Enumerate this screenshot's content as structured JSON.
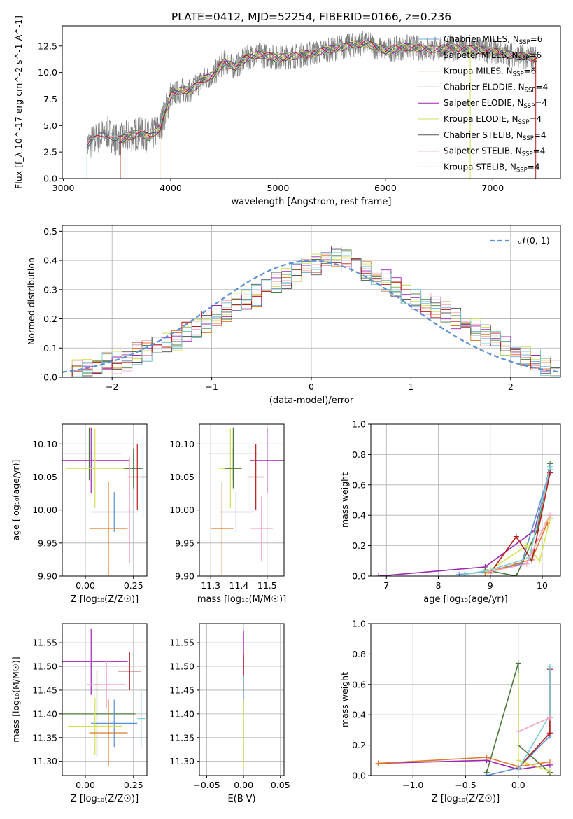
{
  "figure": {
    "title": "PLATE=0412, MJD=52254, FIBERID=0166, z=0.236"
  },
  "chart_data": [
    {
      "id": "spectrum",
      "type": "line",
      "xlabel": "wavelength [Angstrom, rest frame]",
      "ylabel": "Flux [f_λ 10^-17 erg cm^-2 s^-1 A^-1]",
      "xlim": [
        2990,
        7630
      ],
      "ylim": [
        0,
        14.4
      ],
      "xticks": [
        3000,
        4000,
        5000,
        6000,
        7000
      ],
      "yticks": [
        0.0,
        2.5,
        5.0,
        7.5,
        10.0,
        12.5
      ],
      "grid": false,
      "legend_position": "top-right",
      "legend": [
        {
          "label": "Chabrier MILES, N",
          "sub": "SSP",
          "tail": "=6",
          "color": "#6baed6"
        },
        {
          "label": "Salpeter MILES, N",
          "sub": "SSP",
          "tail": "=6",
          "color": "#f4a6c0"
        },
        {
          "label": "Kroupa MILES, N",
          "sub": "SSP",
          "tail": "=6",
          "color": "#e07b2a"
        },
        {
          "label": "Chabrier ELODIE, N",
          "sub": "SSP",
          "tail": "=4",
          "color": "#4b7a3a"
        },
        {
          "label": "Salpeter ELODIE, N",
          "sub": "SSP",
          "tail": "=4",
          "color": "#9b27b0"
        },
        {
          "label": "Kroupa ELODIE, N",
          "sub": "SSP",
          "tail": "=4",
          "color": "#d4e157"
        },
        {
          "label": "Chabrier STELIB, N",
          "sub": "SSP",
          "tail": "=4",
          "color": "#555555"
        },
        {
          "label": "Salpeter STELIB, N",
          "sub": "SSP",
          "tail": "=4",
          "color": "#b71c1c"
        },
        {
          "label": "Kroupa STELIB, N",
          "sub": "SSP",
          "tail": "=4",
          "color": "#80cbd8"
        }
      ],
      "data_color": "#808080",
      "model_envelope": {
        "x": [
          3220,
          3300,
          3400,
          3500,
          3600,
          3700,
          3800,
          3900,
          4000,
          4100,
          4200,
          4300,
          4400,
          4500,
          4600,
          4700,
          4800,
          5000,
          5200,
          5400,
          5600,
          5800,
          6000,
          6200,
          6400,
          6600,
          6800,
          7000,
          7200,
          7400
        ],
        "y": [
          3.2,
          3.7,
          4.4,
          3.6,
          3.9,
          4.3,
          3.9,
          4.8,
          7.8,
          8.3,
          8.4,
          9.3,
          9.8,
          11.0,
          10.5,
          11.3,
          11.7,
          11.4,
          11.6,
          12.0,
          12.4,
          12.8,
          12.1,
          12.4,
          12.2,
          12.3,
          12.2,
          12.0,
          11.6,
          11.4
        ]
      }
    },
    {
      "id": "residuals",
      "type": "line",
      "xlabel": "(data-model)/error",
      "ylabel": "Normed distribution",
      "xlim": [
        -2.5,
        2.5
      ],
      "ylim": [
        0,
        0.52
      ],
      "xticks": [
        -2,
        -1,
        0,
        1,
        2
      ],
      "yticks": [
        0.0,
        0.1,
        0.2,
        0.3,
        0.4,
        0.5
      ],
      "grid": true,
      "legend_position": "top-right",
      "legend": [
        {
          "label": "𝒩(0, 1)",
          "color": "#5b8fd6",
          "dashed": true
        }
      ],
      "bin_width": 0.1,
      "hist_x_start": -2.5,
      "hist_base": [
        0.02,
        0.03,
        0.03,
        0.04,
        0.05,
        0.05,
        0.06,
        0.08,
        0.09,
        0.1,
        0.12,
        0.13,
        0.15,
        0.17,
        0.19,
        0.21,
        0.23,
        0.25,
        0.27,
        0.28,
        0.3,
        0.32,
        0.34,
        0.36,
        0.38,
        0.39,
        0.4,
        0.41,
        0.4,
        0.38,
        0.37,
        0.35,
        0.33,
        0.31,
        0.29,
        0.27,
        0.25,
        0.24,
        0.22,
        0.2,
        0.18,
        0.16,
        0.14,
        0.12,
        0.1,
        0.09,
        0.07,
        0.06,
        0.04,
        0.03
      ]
    },
    {
      "id": "age-vs-metallicity",
      "type": "scatter",
      "xlabel": "Z [log₁₀(Z/Z☉)]",
      "ylabel": "age  [log₁₀(age/yr)]",
      "xlim": [
        -0.12,
        0.32
      ],
      "ylim": [
        9.9,
        10.13
      ],
      "xticks": [
        0.0,
        0.25
      ],
      "xticklabels": [
        "0.00",
        "0.25"
      ],
      "yticks": [
        9.9,
        9.95,
        10.0,
        10.05,
        10.1
      ],
      "yticklabels": [
        "9.90",
        "9.95",
        "10.00",
        "10.05",
        "10.10"
      ],
      "grid": true,
      "points": [
        {
          "x": 0.02,
          "y": 10.085,
          "xerr": 0.17,
          "yerr": 0.04,
          "color": "#4b7a3a"
        },
        {
          "x": 0.03,
          "y": 10.075,
          "xerr": 0.2,
          "yerr": 0.05,
          "color": "#9b27b0"
        },
        {
          "x": 0.05,
          "y": 10.063,
          "xerr": 0.15,
          "yerr": 0.06,
          "color": "#d4e157"
        },
        {
          "x": 0.25,
          "y": 10.063,
          "xerr": 0.05,
          "yerr": 0.03,
          "color": "#4b7a3a"
        },
        {
          "x": 0.27,
          "y": 10.05,
          "xerr": 0.05,
          "yerr": 0.05,
          "color": "#b71c1c"
        },
        {
          "x": 0.15,
          "y": 9.997,
          "xerr": 0.12,
          "yerr": 0.03,
          "color": "#5b8fd6"
        },
        {
          "x": 0.12,
          "y": 9.972,
          "xerr": 0.1,
          "yerr": 0.07,
          "color": "#e07b2a"
        },
        {
          "x": 0.3,
          "y": 10.05,
          "xerr": 0.01,
          "yerr": 0.06,
          "color": "#80cbd8"
        },
        {
          "x": 0.23,
          "y": 10.0,
          "xerr": 0.01,
          "yerr": 0.08,
          "color": "#f4a6c0"
        }
      ]
    },
    {
      "id": "age-vs-mass",
      "type": "scatter",
      "xlabel": "mass [log₁₀(M/M☉)]",
      "xlim": [
        11.26,
        11.56
      ],
      "ylim": [
        9.9,
        10.13
      ],
      "xticks": [
        11.3,
        11.4,
        11.5
      ],
      "xticklabels": [
        "11.3",
        "11.4",
        "11.5"
      ],
      "yticks": [
        9.9,
        9.95,
        10.0,
        10.05,
        10.1
      ],
      "yticklabels": [
        "9.90",
        "9.95",
        "10.00",
        "10.05",
        "10.10"
      ],
      "grid": true,
      "points": [
        {
          "x": 11.38,
          "y": 10.085,
          "xerr": 0.09,
          "yerr": 0.04,
          "color": "#4b7a3a"
        },
        {
          "x": 11.5,
          "y": 10.075,
          "xerr": 0.06,
          "yerr": 0.05,
          "color": "#9b27b0"
        },
        {
          "x": 11.37,
          "y": 10.063,
          "xerr": 0.04,
          "yerr": 0.06,
          "color": "#d4e157"
        },
        {
          "x": 11.38,
          "y": 10.063,
          "xerr": 0.03,
          "yerr": 0.03,
          "color": "#4b7a3a"
        },
        {
          "x": 11.46,
          "y": 10.05,
          "xerr": 0.03,
          "yerr": 0.05,
          "color": "#b71c1c"
        },
        {
          "x": 11.39,
          "y": 9.997,
          "xerr": 0.06,
          "yerr": 0.03,
          "color": "#5b8fd6"
        },
        {
          "x": 11.34,
          "y": 9.972,
          "xerr": 0.04,
          "yerr": 0.07,
          "color": "#e07b2a"
        },
        {
          "x": 11.48,
          "y": 9.972,
          "xerr": 0.04,
          "yerr": 0.05,
          "color": "#f4a6c0"
        }
      ]
    },
    {
      "id": "mass-weight-vs-age",
      "type": "line",
      "xlabel": "age  [log₁₀(age/yr)]",
      "ylabel": "mass weight",
      "xlim": [
        6.7,
        10.35
      ],
      "ylim": [
        0,
        1.0
      ],
      "xticks": [
        7,
        8,
        9,
        10
      ],
      "yticks": [
        0.0,
        0.2,
        0.4,
        0.6,
        0.8,
        1.0
      ],
      "grid": true,
      "series": [
        {
          "color": "#9b27b0",
          "x": [
            6.85,
            8.9,
            9.85,
            10.15
          ],
          "y": [
            0.0,
            0.06,
            0.3,
            0.7
          ]
        },
        {
          "color": "#4b7a3a",
          "x": [
            8.9,
            9.5,
            9.9,
            10.15
          ],
          "y": [
            0.04,
            0.0,
            0.3,
            0.74
          ]
        },
        {
          "color": "#5b8fd6",
          "x": [
            8.4,
            9.0,
            9.6,
            10.15
          ],
          "y": [
            0.01,
            0.03,
            0.08,
            0.7
          ]
        },
        {
          "color": "#e07b2a",
          "x": [
            8.9,
            9.5,
            9.8,
            10.1
          ],
          "y": [
            0.02,
            0.08,
            0.11,
            0.35
          ]
        },
        {
          "color": "#d4e157",
          "x": [
            8.95,
            9.7,
            9.95,
            10.15
          ],
          "y": [
            0.03,
            0.2,
            0.1,
            0.38
          ]
        },
        {
          "color": "#b71c1c",
          "x": [
            9.0,
            9.5,
            9.8,
            10.15
          ],
          "y": [
            0.02,
            0.26,
            0.1,
            0.68
          ]
        },
        {
          "color": "#80cbd8",
          "x": [
            8.5,
            9.0,
            9.75,
            10.15
          ],
          "y": [
            0.01,
            0.04,
            0.12,
            0.72
          ]
        },
        {
          "color": "#f4a6c0",
          "x": [
            9.0,
            9.7,
            10.0,
            10.15
          ],
          "y": [
            0.03,
            0.08,
            0.3,
            0.4
          ]
        }
      ]
    },
    {
      "id": "mass-vs-metallicity",
      "type": "scatter",
      "xlabel": "Z [log₁₀(Z/Z☉)]",
      "ylabel": "mass [log₁₀(M/M☉)]",
      "xlim": [
        -0.12,
        0.32
      ],
      "ylim": [
        11.27,
        11.59
      ],
      "xticks": [
        0.0,
        0.25
      ],
      "xticklabels": [
        "0.00",
        "0.25"
      ],
      "yticks": [
        11.3,
        11.35,
        11.4,
        11.45,
        11.5,
        11.55
      ],
      "yticklabels": [
        "11.30",
        "11.35",
        "11.40",
        "11.45",
        "11.50",
        "11.55"
      ],
      "grid": true,
      "points": [
        {
          "x": 0.03,
          "y": 11.51,
          "xerr": 0.19,
          "yerr": 0.07,
          "color": "#9b27b0"
        },
        {
          "x": 0.23,
          "y": 11.49,
          "xerr": 0.06,
          "yerr": 0.04,
          "color": "#b71c1c"
        },
        {
          "x": 0.11,
          "y": 11.462,
          "xerr": 0.1,
          "yerr": 0.05,
          "color": "#f4a6c0"
        },
        {
          "x": 0.06,
          "y": 11.4,
          "xerr": 0.2,
          "yerr": 0.09,
          "color": "#4b7a3a"
        },
        {
          "x": 0.15,
          "y": 11.38,
          "xerr": 0.12,
          "yerr": 0.05,
          "color": "#5b8fd6"
        },
        {
          "x": 0.05,
          "y": 11.374,
          "xerr": 0.14,
          "yerr": 0.06,
          "color": "#d4e157"
        },
        {
          "x": 0.12,
          "y": 11.36,
          "xerr": 0.1,
          "yerr": 0.07,
          "color": "#e07b2a"
        },
        {
          "x": 0.29,
          "y": 11.39,
          "xerr": 0.02,
          "yerr": 0.06,
          "color": "#80cbd8"
        }
      ]
    },
    {
      "id": "mass-vs-ebv",
      "type": "scatter",
      "xlabel": "E(B-V)",
      "xlim": [
        -0.06,
        0.055
      ],
      "ylim": [
        11.27,
        11.59
      ],
      "xticks": [
        -0.05,
        0.0,
        0.05
      ],
      "xticklabels": [
        "−0.05",
        "0.00",
        "0.05"
      ],
      "yticks": [
        11.3,
        11.35,
        11.4,
        11.45,
        11.5,
        11.55
      ],
      "yticklabels": [
        "11.30",
        "11.35",
        "11.40",
        "11.45",
        "11.50",
        "11.55"
      ],
      "grid": true,
      "points": [
        {
          "x": 0.0,
          "y": 11.5,
          "xerr": 0.0,
          "yerr": 0.075,
          "color": "#9b27b0"
        },
        {
          "x": 0.0,
          "y": 11.485,
          "xerr": 0.0,
          "yerr": 0.04,
          "color": "#b71c1c"
        },
        {
          "x": 0.0,
          "y": 11.39,
          "xerr": 0.0,
          "yerr": 0.09,
          "color": "#80cbd8"
        },
        {
          "x": 0.0,
          "y": 11.36,
          "xerr": 0.0,
          "yerr": 0.07,
          "color": "#d4e157"
        }
      ]
    },
    {
      "id": "mass-weight-vs-metallicity",
      "type": "line",
      "xlabel": "Z [log₁₀(Z/Z☉)]",
      "ylabel": "mass weight",
      "xlim": [
        -1.4,
        0.4
      ],
      "ylim": [
        0,
        1.0
      ],
      "xticks": [
        -1.0,
        -0.5,
        0.0
      ],
      "xticklabels": [
        "−1.0",
        "−0.5",
        "0.0"
      ],
      "yticks": [
        0.0,
        0.2,
        0.4,
        0.6,
        0.8,
        1.0
      ],
      "grid": true,
      "series": [
        {
          "color": "#4b7a3a",
          "x": [
            -0.3,
            0.0,
            0.0,
            0.3
          ],
          "y": [
            0.02,
            0.74,
            0.2,
            0.02
          ]
        },
        {
          "color": "#9b27b0",
          "x": [
            -1.33,
            -0.3,
            0.0,
            0.3
          ],
          "y": [
            0.08,
            0.1,
            0.04,
            0.07
          ]
        },
        {
          "color": "#e07b2a",
          "x": [
            -1.33,
            -0.3,
            0.0,
            0.3
          ],
          "y": [
            0.08,
            0.12,
            0.06,
            0.09
          ]
        },
        {
          "color": "#5b8fd6",
          "x": [
            -0.3,
            0.0,
            0.3,
            0.3
          ],
          "y": [
            0.0,
            0.05,
            0.26,
            0.7
          ]
        },
        {
          "color": "#d4e157",
          "x": [
            0.0,
            0.0,
            0.3
          ],
          "y": [
            0.66,
            0.1,
            0.03
          ]
        },
        {
          "color": "#b71c1c",
          "x": [
            0.0,
            0.3,
            0.3
          ],
          "y": [
            0.05,
            0.28,
            0.7
          ]
        },
        {
          "color": "#80cbd8",
          "x": [
            0.0,
            0.3,
            0.3
          ],
          "y": [
            0.04,
            0.4,
            0.72
          ]
        },
        {
          "color": "#f4a6c0",
          "x": [
            0.0,
            0.3
          ],
          "y": [
            0.29,
            0.38
          ]
        }
      ]
    }
  ]
}
